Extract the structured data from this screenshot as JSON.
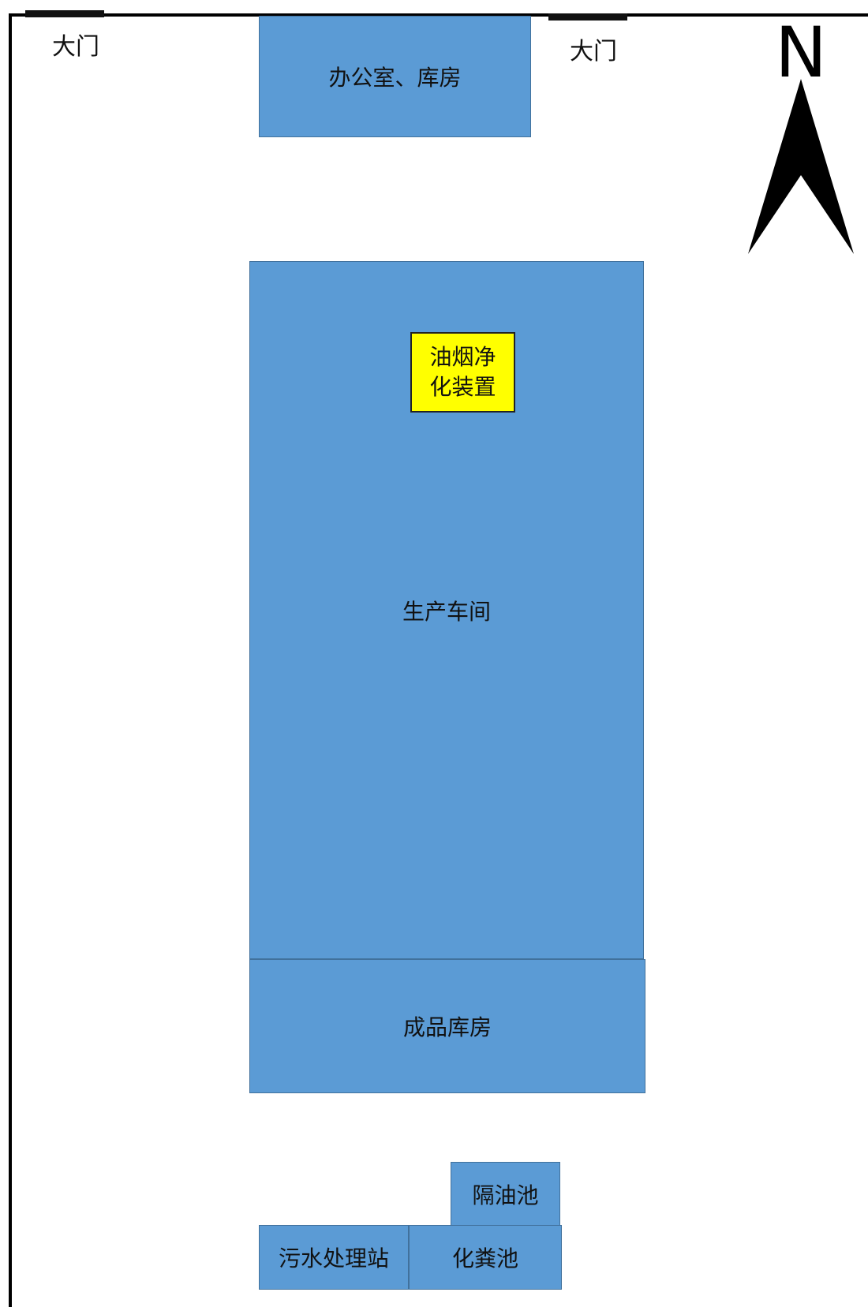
{
  "gates": [
    {
      "label": "大门"
    },
    {
      "label": "大门"
    }
  ],
  "compass": {
    "letter": "N",
    "color": "#000000"
  },
  "buildings": {
    "office": {
      "label": "办公室、库房"
    },
    "workshop": {
      "label": "生产车间"
    },
    "fume_purifier": {
      "label": "油烟净\n化装置"
    },
    "finished_warehouse": {
      "label": "成品库房"
    },
    "grease_trap": {
      "label": "隔油池"
    },
    "sewage_station": {
      "label": "污水处理站"
    },
    "septic_tank": {
      "label": "化粪池"
    }
  },
  "colors": {
    "building_fill": "#5b9bd5",
    "building_border": "#41719c",
    "device_fill": "#ffff00",
    "boundary": "#000000"
  }
}
